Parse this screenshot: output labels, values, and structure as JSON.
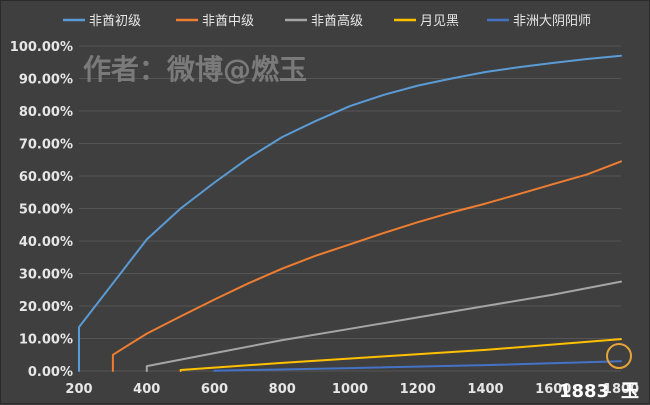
{
  "watermark": "作者：微博@燃玉",
  "logo": {
    "text": "1883",
    "suffix": "玉"
  },
  "colors": {
    "background": "#3f3f3f",
    "grid": "#555555",
    "text": "#e6e6e6"
  },
  "chart_data": {
    "type": "line",
    "title": "",
    "xlabel": "",
    "ylabel": "",
    "xlim": [
      200,
      1800
    ],
    "ylim": [
      0,
      100
    ],
    "x_ticks": [
      200,
      400,
      600,
      800,
      1000,
      1200,
      1400,
      1600,
      1800
    ],
    "x_tick_labels": [
      "200",
      "400",
      "600",
      "800",
      "1000",
      "1200",
      "1400",
      "1600",
      "1800"
    ],
    "y_ticks": [
      0,
      10,
      20,
      30,
      40,
      50,
      60,
      70,
      80,
      90,
      100
    ],
    "y_tick_labels": [
      "0.00%",
      "10.00%",
      "20.00%",
      "30.00%",
      "40.00%",
      "50.00%",
      "60.00%",
      "70.00%",
      "80.00%",
      "90.00%",
      "100.00%"
    ],
    "grid": true,
    "legend_position": "top",
    "series": [
      {
        "name": "非酋初级",
        "color": "#5b9bd5",
        "points": [
          [
            200,
            0
          ],
          [
            200,
            13.5
          ],
          [
            300,
            27
          ],
          [
            400,
            40.5
          ],
          [
            500,
            50
          ],
          [
            600,
            58
          ],
          [
            700,
            65.5
          ],
          [
            800,
            72
          ],
          [
            900,
            77
          ],
          [
            1000,
            81.5
          ],
          [
            1100,
            85
          ],
          [
            1200,
            87.8
          ],
          [
            1300,
            90
          ],
          [
            1400,
            92
          ],
          [
            1500,
            93.5
          ],
          [
            1600,
            94.8
          ],
          [
            1700,
            96
          ],
          [
            1800,
            97
          ]
        ]
      },
      {
        "name": "非酋中级",
        "color": "#ed7d31",
        "points": [
          [
            300,
            0
          ],
          [
            300,
            5
          ],
          [
            400,
            11.5
          ],
          [
            500,
            16.8
          ],
          [
            600,
            22
          ],
          [
            700,
            27
          ],
          [
            800,
            31.5
          ],
          [
            900,
            35.5
          ],
          [
            1000,
            39
          ],
          [
            1100,
            42.5
          ],
          [
            1200,
            45.8
          ],
          [
            1300,
            48.8
          ],
          [
            1400,
            51.5
          ],
          [
            1500,
            54.5
          ],
          [
            1600,
            57.5
          ],
          [
            1700,
            60.5
          ],
          [
            1800,
            64.5
          ]
        ]
      },
      {
        "name": "非酋高级",
        "color": "#a5a5a5",
        "points": [
          [
            400,
            0
          ],
          [
            400,
            1.5
          ],
          [
            600,
            5.5
          ],
          [
            800,
            9.5
          ],
          [
            1000,
            13
          ],
          [
            1200,
            16.5
          ],
          [
            1400,
            20
          ],
          [
            1600,
            23.5
          ],
          [
            1800,
            27.5
          ]
        ]
      },
      {
        "name": "月见黑",
        "color": "#ffc000",
        "points": [
          [
            500,
            0
          ],
          [
            500,
            0.3
          ],
          [
            800,
            2.5
          ],
          [
            1100,
            4.5
          ],
          [
            1400,
            6.5
          ],
          [
            1800,
            9.8
          ]
        ]
      },
      {
        "name": "非洲大阴阳师",
        "color": "#4472c4",
        "points": [
          [
            600,
            0
          ],
          [
            600,
            0.1
          ],
          [
            1000,
            0.9
          ],
          [
            1400,
            1.8
          ],
          [
            1800,
            3
          ]
        ]
      }
    ]
  }
}
